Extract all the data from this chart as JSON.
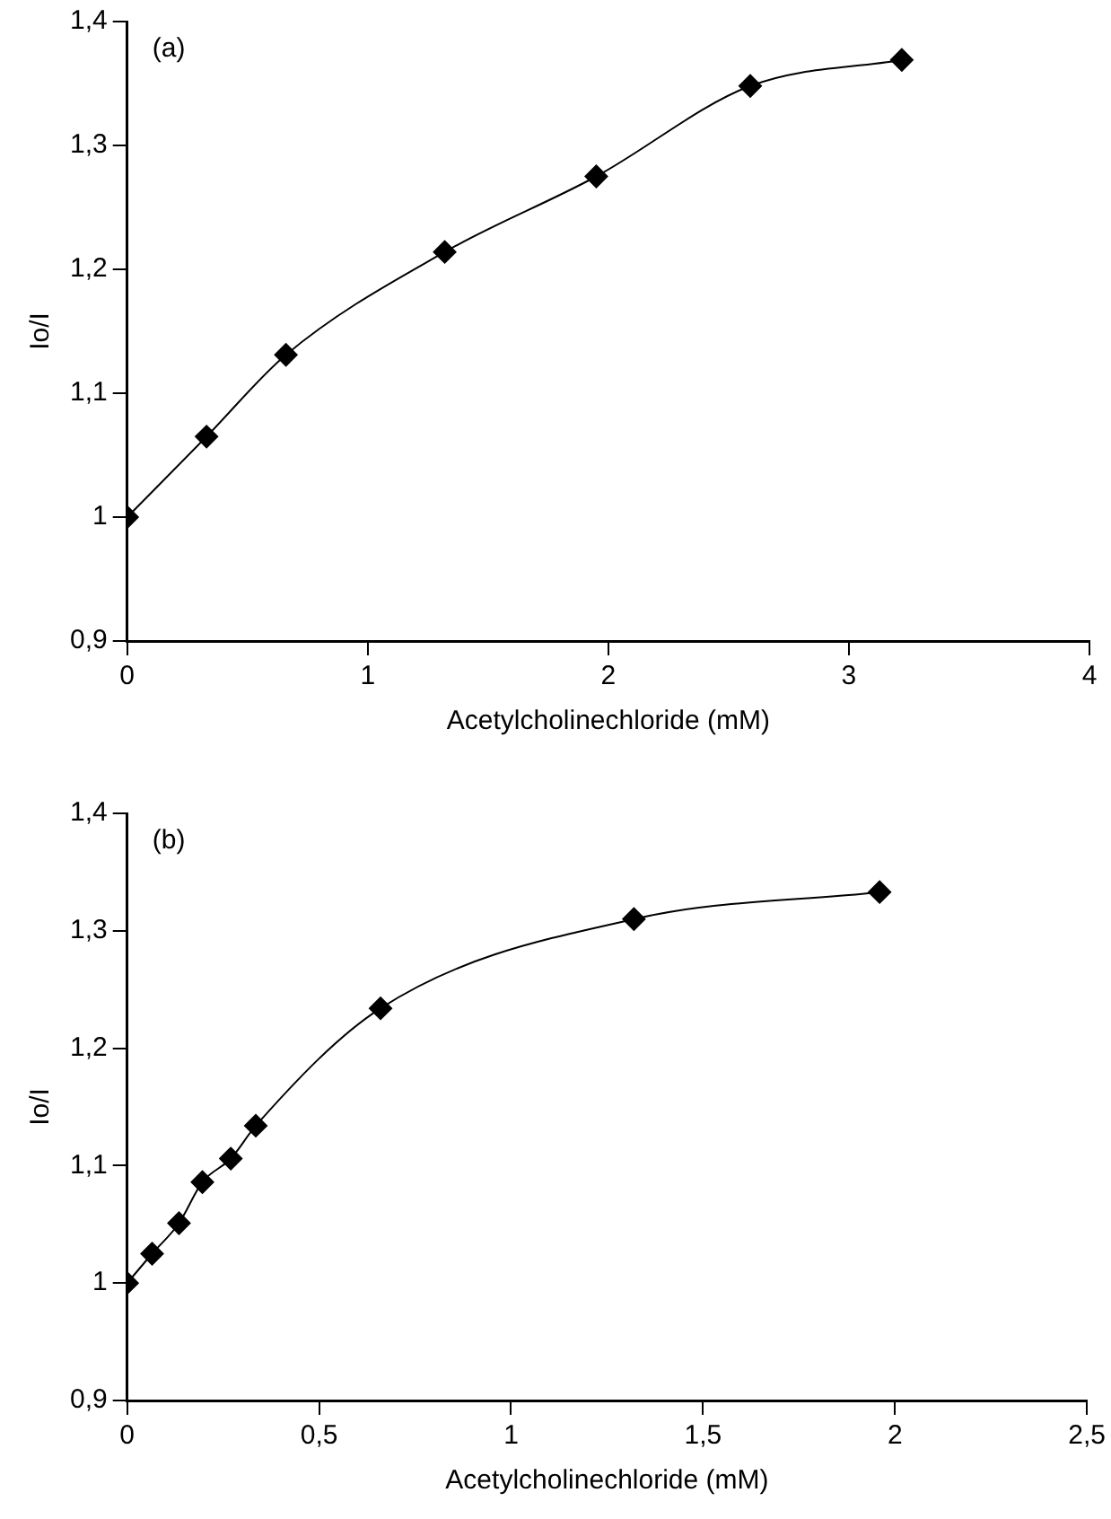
{
  "chart_data": [
    {
      "type": "line",
      "xlabel": "Acetylcholinechloride (mM)",
      "ylabel": "Io/I",
      "annotations": [
        "(a)"
      ],
      "marker": "diamond",
      "line_style": "solid",
      "legend": false,
      "grid": false,
      "xlim": [
        0,
        4
      ],
      "xticks": [
        0,
        1,
        2,
        3,
        4
      ],
      "ylim": [
        0.9,
        1.4
      ],
      "yticks": [
        {
          "value": 0.9,
          "label": "0,9"
        },
        1,
        {
          "value": 1.1,
          "label": "1,1"
        },
        {
          "value": 1.2,
          "label": "1,2"
        },
        {
          "value": 1.3,
          "label": "1,3"
        },
        {
          "value": 1.4,
          "label": "1,4"
        }
      ],
      "series": [
        {
          "color": "#000000",
          "x": [
            0,
            0.33,
            0.66,
            1.32,
            1.95,
            2.59,
            3.22
          ],
          "values": [
            1.0,
            1.065,
            1.131,
            1.214,
            1.275,
            1.348,
            1.369
          ]
        }
      ]
    },
    {
      "type": "line",
      "xlabel": "Acetylcholinechloride (mM)",
      "ylabel": "Io/I",
      "annotations": [
        "(b)"
      ],
      "marker": "diamond",
      "line_style": "solid",
      "legend": false,
      "grid": false,
      "xlim": [
        0,
        2.5
      ],
      "xticks": [
        0,
        {
          "value": 0.5,
          "label": "0,5"
        },
        1,
        {
          "value": 1.5,
          "label": "1,5"
        },
        2,
        {
          "value": 2.5,
          "label": "2,5"
        }
      ],
      "ylim": [
        0.9,
        1.4
      ],
      "yticks": [
        {
          "value": 0.9,
          "label": "0,9"
        },
        1,
        {
          "value": 1.1,
          "label": "1,1"
        },
        {
          "value": 1.2,
          "label": "1,2"
        },
        {
          "value": 1.3,
          "label": "1,3"
        },
        {
          "value": 1.4,
          "label": "1,4"
        }
      ],
      "series": [
        {
          "color": "#000000",
          "x": [
            0,
            0.065,
            0.135,
            0.196,
            0.27,
            0.335,
            0.66,
            1.32,
            1.96
          ],
          "values": [
            1.0,
            1.025,
            1.051,
            1.086,
            1.106,
            1.134,
            1.234,
            1.31,
            1.333
          ]
        }
      ]
    }
  ]
}
